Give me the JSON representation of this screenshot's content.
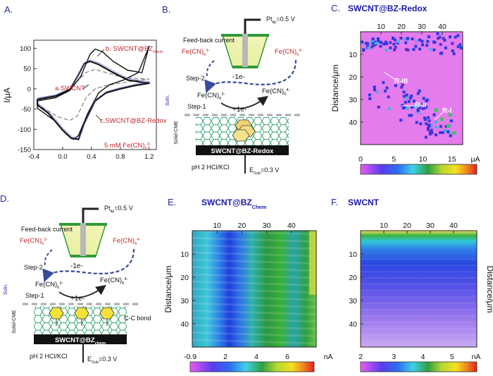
{
  "panels": {
    "A": {
      "letter": "A.",
      "ylabel": "I/μA",
      "xticks": [
        "-0.4",
        "0.0",
        "0.4",
        "0.8",
        "1.2"
      ],
      "yticks": [
        "100",
        "50",
        "0",
        "-50",
        "-100",
        "-150"
      ],
      "labels": {
        "b": "b. SWCNT@BZ",
        "b_sub": "chem",
        "a": "a.SWCNT",
        "c": "c.SWCNT@BZ-Redox",
        "conc": "5 mM Fe(CN)",
        "conc_sub": "6",
        "conc_sup": "3-"
      }
    },
    "B": {
      "letter": "B.",
      "tip_label": "Pt",
      "tip_sub": "tip",
      "tip_val": "=0.5 V",
      "feedback": "Feed-back current",
      "step1": "Step-1",
      "step2": "Step-2",
      "minus_e": "-1e-",
      "plus_e": "+1e-",
      "soln": "Soln.",
      "solid": "Solid-CME",
      "fcn": "Fe(CN)",
      "fcn_sub": "6",
      "sup3": "3-",
      "sup4": "4-",
      "electrode": "SWCNT@BZ-Redox",
      "ph": "pH 2 HCl/KCl",
      "esub": "E",
      "esub_sub": "Sub",
      "esub_val": "=0.3 V"
    },
    "C": {
      "letter": "C.",
      "title": "SWCNT@BZ-Redox",
      "ylabel": "Distance/μm",
      "xticks": [
        "10",
        "20",
        "30",
        "40"
      ],
      "yticks": [
        "10",
        "20",
        "30",
        "40"
      ],
      "regions": [
        "R-III",
        "R-II",
        "R-I"
      ],
      "cbar_ticks": [
        "0",
        "5",
        "10",
        "15"
      ],
      "cbar_unit": "μA"
    },
    "D": {
      "letter": "D.",
      "tip_label": "Pt",
      "tip_sub": "tip",
      "tip_val": "=0.5 V",
      "feedback": "Feed-back current",
      "step1": "Step-1",
      "step2": "Step-2",
      "minus_e": "-1e-",
      "plus_e": "+1e-",
      "soln": "Soln.",
      "solid": "Solid-CME",
      "fcn": "Fe(CN)",
      "fcn_sub": "6",
      "sup3": "3-",
      "sup4": "4-",
      "bond": "C-C bond",
      "electrode": "SWCNT@BZ",
      "electrode_sub": "chem",
      "ph": "pH 2 HCl/KCl",
      "esub": "E",
      "esub_sub": "Sub",
      "esub_val": "=0.3 V"
    },
    "E": {
      "letter": "E.",
      "title": "SWCNT@BZ",
      "title_sub": "Chem",
      "ylabel": "Distance/μm",
      "xticks": [
        "10",
        "20",
        "30",
        "40"
      ],
      "yticks": [
        "10",
        "20",
        "30",
        "40"
      ],
      "cbar_ticks": [
        "-0.9",
        "2",
        "4",
        "6"
      ],
      "cbar_unit": "nA"
    },
    "F": {
      "letter": "F.",
      "title": "SWCNT",
      "ylabel": "Distance/μm",
      "xticks": [
        "10",
        "20",
        "30",
        "40"
      ],
      "yticks": [
        "10",
        "20",
        "30",
        "40"
      ],
      "cbar_ticks": [
        "2",
        "3",
        "4",
        "5"
      ],
      "cbar_unit": "nA"
    }
  },
  "colors": {
    "red": "#c0272d",
    "blue": "#1a1aa8",
    "navy": "#1f2e8c",
    "dash": "#3a4a9a",
    "green": "#2e9a3a"
  },
  "chart_data": [
    {
      "type": "line",
      "panel": "A",
      "title": "",
      "xlabel": "",
      "ylabel": "I/μA",
      "xlim": [
        -0.4,
        1.3
      ],
      "ylim": [
        -150,
        120
      ],
      "series": [
        {
          "name": "a.SWCNT",
          "style": "dashed gray",
          "x": [
            -0.35,
            -0.1,
            0.05,
            0.2,
            0.32,
            0.45,
            0.6,
            0.8,
            1.0,
            1.2,
            1.0,
            0.8,
            0.6,
            0.45,
            0.33,
            0.2,
            0.1,
            -0.05,
            -0.2,
            -0.35
          ],
          "y": [
            -28,
            -22,
            -8,
            18,
            40,
            48,
            40,
            30,
            26,
            24,
            20,
            14,
            8,
            0,
            -20,
            -68,
            -78,
            -70,
            -55,
            -38
          ]
        },
        {
          "name": "b. SWCNT@BZchem",
          "style": "solid black",
          "x": [
            -0.35,
            -0.1,
            0.1,
            0.25,
            0.38,
            0.45,
            0.55,
            0.7,
            0.9,
            1.1,
            1.2,
            1.05,
            0.85,
            0.65,
            0.5,
            0.35,
            0.22,
            0.15,
            0.05,
            -0.1,
            -0.35
          ],
          "y": [
            -30,
            -22,
            -4,
            30,
            85,
            98,
            92,
            68,
            46,
            40,
            105,
            40,
            22,
            10,
            -10,
            -60,
            -115,
            -125,
            -112,
            -80,
            -48
          ]
        },
        {
          "name": "c.SWCNT@BZ-Redox",
          "style": "solid black",
          "x": [
            -0.35,
            -0.1,
            0.1,
            0.22,
            0.3,
            0.38,
            0.5,
            0.7,
            0.9,
            1.1,
            1.2,
            1.0,
            0.8,
            0.6,
            0.45,
            0.3,
            0.22,
            0.12,
            0.0,
            -0.2,
            -0.35
          ],
          "y": [
            -26,
            -18,
            -2,
            35,
            62,
            68,
            60,
            40,
            22,
            16,
            14,
            8,
            0,
            -10,
            -30,
            -85,
            -125,
            -122,
            -102,
            -60,
            -40
          ]
        }
      ]
    },
    {
      "type": "heatmap",
      "panel": "C",
      "title": "SWCNT@BZ-Redox",
      "xticks": [
        10,
        20,
        30,
        40
      ],
      "yticks": [
        10,
        20,
        30,
        40
      ],
      "ylabel": "Distance/μm",
      "colorbar_range": [
        0,
        15
      ],
      "colorbar_unit": "μA"
    },
    {
      "type": "heatmap",
      "panel": "E",
      "title": "SWCNT@BZChem",
      "xticks": [
        10,
        20,
        30,
        40
      ],
      "yticks": [
        10,
        20,
        30,
        40
      ],
      "ylabel": "Distance/μm",
      "colorbar_range": [
        -0.9,
        6
      ],
      "colorbar_unit": "nA"
    },
    {
      "type": "heatmap",
      "panel": "F",
      "title": "SWCNT",
      "xticks": [
        10,
        20,
        30,
        40
      ],
      "yticks": [
        10,
        20,
        30,
        40
      ],
      "ylabel": "Distance/μm",
      "colorbar_range": [
        2,
        5
      ],
      "colorbar_unit": "nA"
    }
  ]
}
